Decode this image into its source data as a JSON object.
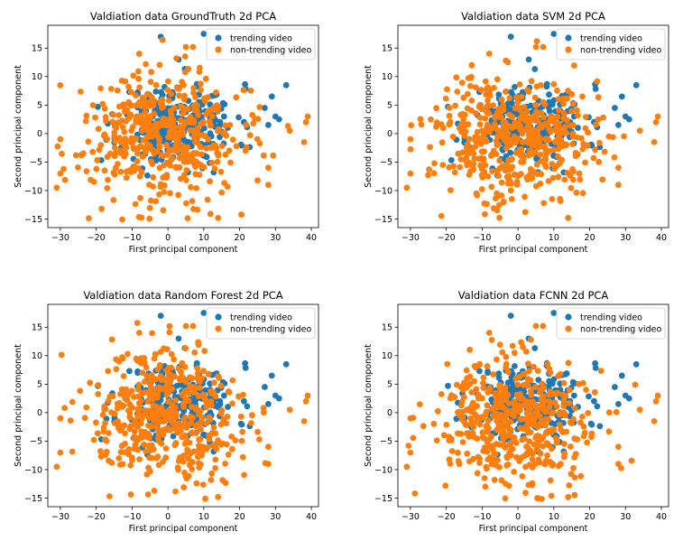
{
  "chart_data": [
    {
      "type": "scatter",
      "title": "Valdiation data GroundTruth 2d PCA",
      "xlabel": "First principal component",
      "ylabel": "Second principal component",
      "xlim": [
        -33.5,
        42
      ],
      "ylim": [
        -16.5,
        19
      ],
      "xticks": [
        -30,
        -20,
        -10,
        0,
        10,
        20,
        30,
        40
      ],
      "yticks": [
        -15,
        -10,
        -5,
        0,
        5,
        10,
        15
      ],
      "grid": false,
      "legend_position": "top-right",
      "series": [
        {
          "name": "trending video",
          "color": "#1f77b4",
          "seed": 11,
          "mode": "trending"
        },
        {
          "name": "non-trending video",
          "color": "#ff7f0e",
          "seed": 23,
          "mode": "nontrending"
        }
      ]
    },
    {
      "type": "scatter",
      "title": "Valdiation data SVM 2d PCA",
      "xlabel": "First principal component",
      "ylabel": "Second principal component",
      "xlim": [
        -33.5,
        42
      ],
      "ylim": [
        -16.5,
        19
      ],
      "xticks": [
        -30,
        -20,
        -10,
        0,
        10,
        20,
        30,
        40
      ],
      "yticks": [
        -15,
        -10,
        -5,
        0,
        5,
        10,
        15
      ],
      "grid": false,
      "legend_position": "top-right",
      "series": [
        {
          "name": "trending video",
          "color": "#1f77b4",
          "seed": 11,
          "mode": "trending"
        },
        {
          "name": "non-trending video",
          "color": "#ff7f0e",
          "seed": 37,
          "mode": "nontrending"
        }
      ]
    },
    {
      "type": "scatter",
      "title": "Valdiation data Random Forest 2d PCA",
      "xlabel": "First principal component",
      "ylabel": "Second principal component",
      "xlim": [
        -33.5,
        42
      ],
      "ylim": [
        -16.5,
        19
      ],
      "xticks": [
        -30,
        -20,
        -10,
        0,
        10,
        20,
        30,
        40
      ],
      "yticks": [
        -15,
        -10,
        -5,
        0,
        5,
        10,
        15
      ],
      "grid": false,
      "legend_position": "top-right",
      "series": [
        {
          "name": "trending video",
          "color": "#1f77b4",
          "seed": 11,
          "mode": "trending"
        },
        {
          "name": "non-trending video",
          "color": "#ff7f0e",
          "seed": 51,
          "mode": "nontrending"
        }
      ]
    },
    {
      "type": "scatter",
      "title": "Valdiation data FCNN 2d PCA",
      "xlabel": "First principal component",
      "ylabel": "Second principal component",
      "xlim": [
        -33.5,
        42
      ],
      "ylim": [
        -16.5,
        19
      ],
      "xticks": [
        -30,
        -20,
        -10,
        0,
        10,
        20,
        30,
        40
      ],
      "yticks": [
        -15,
        -10,
        -5,
        0,
        5,
        10,
        15
      ],
      "grid": false,
      "legend_position": "top-right",
      "series": [
        {
          "name": "trending video",
          "color": "#1f77b4",
          "seed": 11,
          "mode": "trending"
        },
        {
          "name": "non-trending video",
          "color": "#ff7f0e",
          "seed": 73,
          "mode": "nontrending"
        }
      ]
    }
  ]
}
